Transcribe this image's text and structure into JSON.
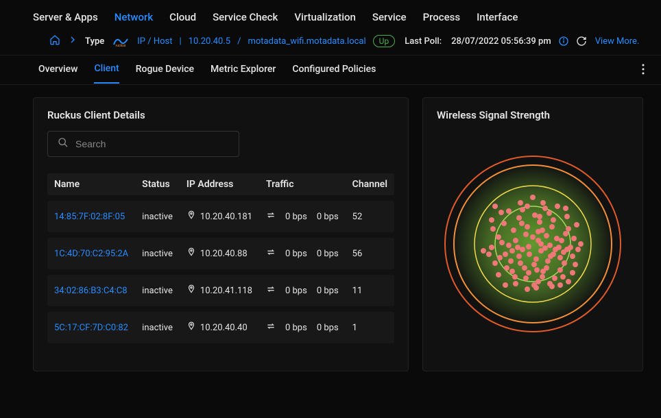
{
  "top_nav": {
    "items": [
      "Server & Apps",
      "Network",
      "Cloud",
      "Service Check",
      "Virtualization",
      "Service",
      "Process",
      "Interface"
    ],
    "active_index": 1
  },
  "breadcrumb": {
    "type_label": "Type",
    "brand_name": "ruckus",
    "ip_host_label": "IP / Host",
    "ip": "10.20.40.5",
    "hostname": "motadata_wifi.motadata.local",
    "status": "Up",
    "status_color": "#4caf50",
    "last_poll_label": "Last Poll:",
    "last_poll_value": "28/07/2022 05:56:39 pm",
    "view_more": "View More."
  },
  "sub_nav": {
    "tabs": [
      "Overview",
      "Client",
      "Rogue Device",
      "Metric Explorer",
      "Configured Policies"
    ],
    "active_index": 1
  },
  "clients_panel": {
    "title": "Ruckus Client Details",
    "search_placeholder": "Search",
    "columns": [
      "Name",
      "Status",
      "IP Address",
      "Traffic",
      "Channel"
    ],
    "rows": [
      {
        "name": "14:85:7F:02:8F:05",
        "status": "inactive",
        "ip": "10.20.40.181",
        "traffic_in": "0 bps",
        "traffic_out": "0 bps",
        "channel": "52"
      },
      {
        "name": "1C:4D:70:C2:95:2A",
        "status": "inactive",
        "ip": "10.20.40.88",
        "traffic_in": "0 bps",
        "traffic_out": "0 bps",
        "channel": "56"
      },
      {
        "name": "34:02:86:B3:C4:C8",
        "status": "inactive",
        "ip": "10.20.41.118",
        "traffic_in": "0 bps",
        "traffic_out": "0 bps",
        "channel": "11"
      },
      {
        "name": "5C:17:CF:7D:C0:82",
        "status": "inactive",
        "ip": "10.20.40.40",
        "traffic_in": "0 bps",
        "traffic_out": "0 bps",
        "channel": "1"
      }
    ]
  },
  "signal_panel": {
    "title": "Wireless Signal Strength",
    "chart": {
      "type": "radial-scatter",
      "background_color": "#111111",
      "center_glow_color": "#6aa832",
      "rings": [
        {
          "radius": 55,
          "stroke": "#a7d85f",
          "stroke_width": 1.5
        },
        {
          "radius": 85,
          "stroke": "#f2d94e",
          "stroke_width": 1.5
        },
        {
          "radius": 115,
          "stroke": "#f28f3b",
          "stroke_width": 2
        },
        {
          "radius": 128,
          "stroke": "#e05a2b",
          "stroke_width": 2
        }
      ],
      "point_color": "#f07878",
      "point_radius": 4,
      "points": [
        [
          8,
          -5
        ],
        [
          12,
          10
        ],
        [
          -6,
          4
        ],
        [
          20,
          -12
        ],
        [
          -15,
          8
        ],
        [
          5,
          22
        ],
        [
          18,
          6
        ],
        [
          -10,
          -14
        ],
        [
          25,
          2
        ],
        [
          -20,
          18
        ],
        [
          14,
          -20
        ],
        [
          30,
          15
        ],
        [
          -25,
          -5
        ],
        [
          2,
          30
        ],
        [
          -8,
          -25
        ],
        [
          22,
          25
        ],
        [
          -30,
          10
        ],
        [
          35,
          -8
        ],
        [
          10,
          -32
        ],
        [
          -18,
          28
        ],
        [
          28,
          -25
        ],
        [
          -35,
          2
        ],
        [
          40,
          20
        ],
        [
          6,
          38
        ],
        [
          -12,
          35
        ],
        [
          33,
          8
        ],
        [
          -28,
          -20
        ],
        [
          15,
          40
        ],
        [
          -40,
          15
        ],
        [
          42,
          -5
        ],
        [
          0,
          -10
        ],
        [
          -5,
          15
        ],
        [
          12,
          0
        ],
        [
          -22,
          5
        ],
        [
          8,
          -18
        ],
        [
          26,
          18
        ],
        [
          -16,
          -30
        ],
        [
          38,
          5
        ],
        [
          -6,
          42
        ],
        [
          20,
          35
        ],
        [
          -32,
          25
        ],
        [
          45,
          12
        ],
        [
          -45,
          -2
        ],
        [
          14,
          48
        ],
        [
          -20,
          -38
        ],
        [
          48,
          -15
        ],
        [
          3,
          -42
        ],
        [
          -38,
          35
        ],
        [
          30,
          -35
        ],
        [
          50,
          8
        ],
        [
          -10,
          50
        ],
        [
          24,
          -45
        ],
        [
          -48,
          20
        ],
        [
          40,
          38
        ],
        [
          -26,
          48
        ],
        [
          52,
          -22
        ],
        [
          8,
          55
        ],
        [
          -50,
          -10
        ],
        [
          18,
          -52
        ],
        [
          55,
          5
        ],
        [
          -15,
          -50
        ],
        [
          46,
          28
        ],
        [
          -42,
          -30
        ],
        [
          58,
          18
        ],
        [
          -55,
          28
        ],
        [
          32,
          50
        ],
        [
          -8,
          -55
        ],
        [
          60,
          -8
        ],
        [
          2,
          60
        ],
        [
          -60,
          5
        ],
        [
          25,
          58
        ],
        [
          -35,
          -48
        ],
        [
          50,
          -40
        ],
        [
          -58,
          -22
        ],
        [
          44,
          48
        ],
        [
          15,
          -60
        ],
        [
          -25,
          58
        ],
        [
          62,
          30
        ],
        [
          -50,
          45
        ],
        [
          36,
          -55
        ],
        [
          -64,
          15
        ],
        [
          10,
          -40
        ],
        [
          -30,
          40
        ],
        [
          48,
          -52
        ],
        [
          -46,
          -46
        ],
        [
          58,
          42
        ],
        [
          5,
          64
        ],
        [
          -60,
          -35
        ],
        [
          64,
          -28
        ],
        [
          28,
          62
        ],
        [
          -18,
          -60
        ],
        [
          66,
          8
        ],
        [
          -8,
          66
        ],
        [
          70,
          0
        ],
        [
          0,
          -68
        ],
        [
          40,
          60
        ],
        [
          -72,
          10
        ],
        [
          -40,
          60
        ],
        [
          52,
          55
        ],
        [
          -55,
          -55
        ]
      ]
    }
  },
  "colors": {
    "accent": "#2a8cff",
    "text": "#e5e5e5",
    "muted": "#888888",
    "row_bg": "#181818",
    "header_row_bg": "#1a1a1a",
    "panel_bg": "#111111",
    "page_bg": "#0a0a0a"
  }
}
